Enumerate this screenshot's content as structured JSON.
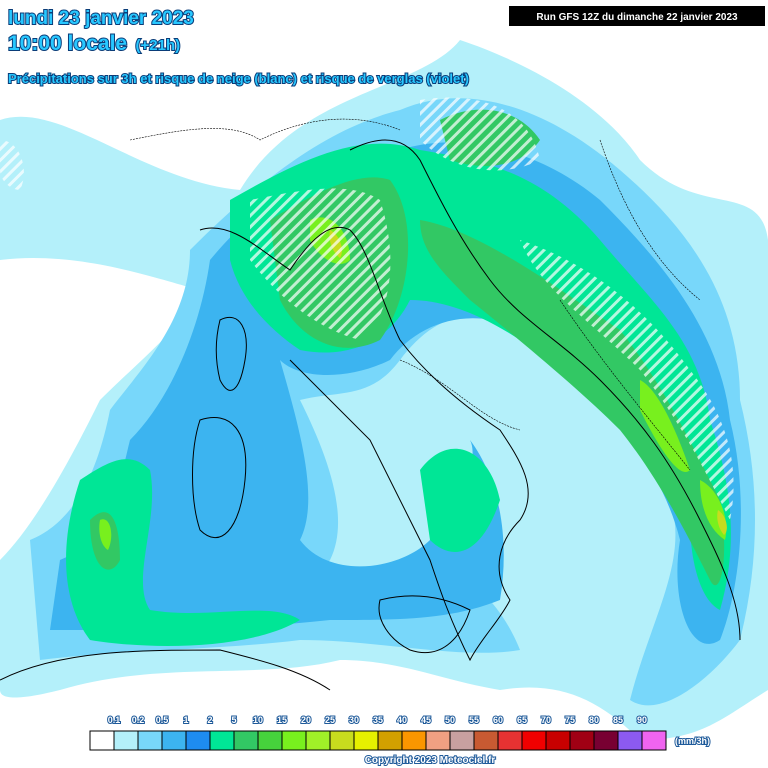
{
  "header": {
    "date": "lundi 23 janvier 2023",
    "time": "10:00 locale",
    "offset": "(+21h)",
    "subtitle": "Précipitations sur 3h et risque de neige (blanc) et risque de verglas (violet)",
    "run": "Run GFS 12Z du dimanche 22 janvier 2023"
  },
  "legend": {
    "labels": [
      0.1,
      0.2,
      0.5,
      1,
      2,
      5,
      10,
      15,
      20,
      25,
      30,
      35,
      40,
      45,
      50,
      55,
      60,
      65,
      70,
      75,
      80,
      85,
      90
    ],
    "colors": [
      "#ffffff",
      "#b4f0fa",
      "#78d7fa",
      "#3cb4f0",
      "#1e8cf0",
      "#00e696",
      "#32c864",
      "#46d23c",
      "#78f01e",
      "#a0f028",
      "#c8dc1e",
      "#e6f000",
      "#d2a000",
      "#fa9600",
      "#f0a082",
      "#c8a0a0",
      "#c85a32",
      "#e63232",
      "#f00000",
      "#c80000",
      "#a00014",
      "#780032",
      "#8c5af0",
      "#f064f0"
    ],
    "unit": "(mm/3h)"
  },
  "footer": {
    "copyright": "Copyright 2023 Meteociel.fr"
  }
}
